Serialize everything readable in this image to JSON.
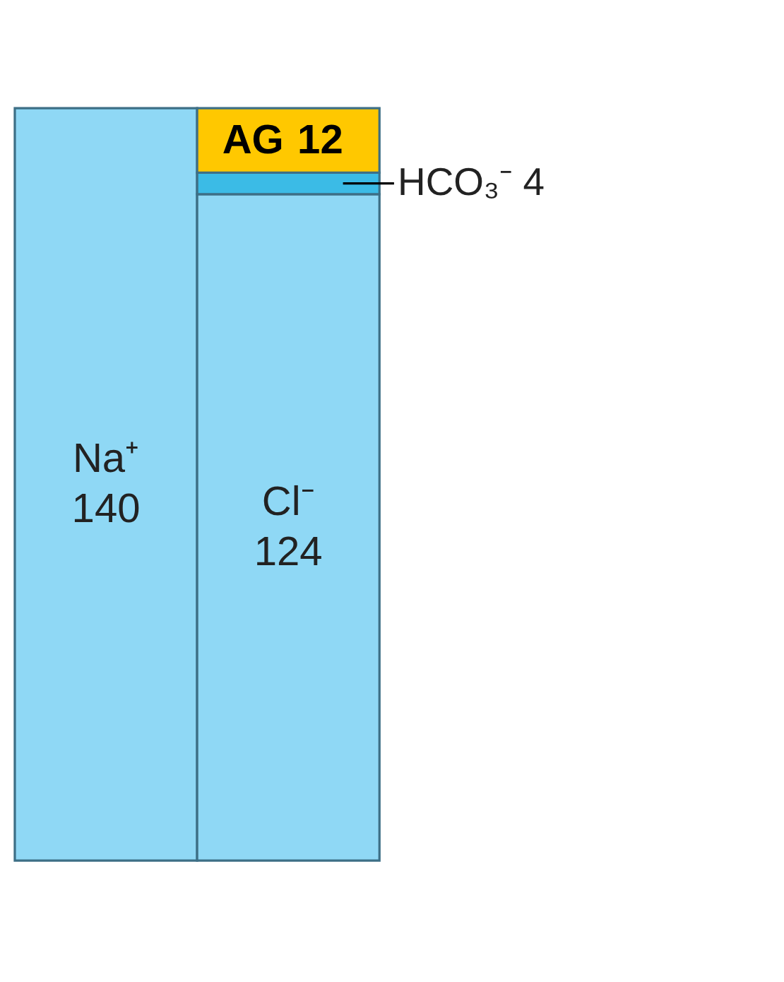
{
  "chart_data": {
    "type": "bar",
    "stacked": true,
    "categories": [
      null,
      null
    ],
    "series": [
      {
        "name": "Na⁺",
        "color": "#8fd8f5",
        "values": [
          140,
          null
        ],
        "value_labels": [
          "140",
          null
        ]
      },
      {
        "name": "Cl⁻",
        "color": "#8fd8f5",
        "values": [
          null,
          124
        ],
        "value_labels": [
          null,
          "124"
        ]
      },
      {
        "color": "#3bbbe6",
        "values": [
          null,
          4
        ],
        "value_labels": [
          null,
          null
        ]
      },
      {
        "name": "AG",
        "color": "#ffc800",
        "values": [
          null,
          12
        ],
        "value_labels": [
          null,
          "12"
        ]
      }
    ],
    "annotations": [
      "HCO₃⁻ 4"
    ],
    "tick_labels": false
  }
}
